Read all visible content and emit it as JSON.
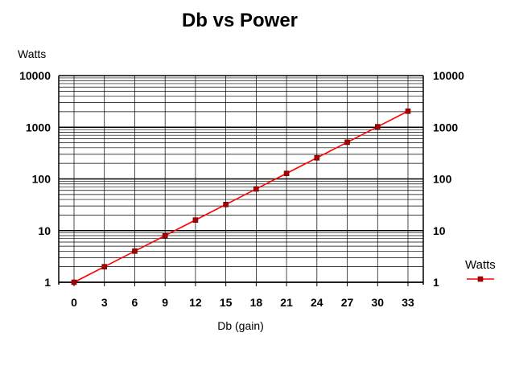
{
  "chart_data": {
    "type": "line",
    "title": "Db vs Power",
    "xlabel": "Db (gain)",
    "ylabel": "Watts",
    "y_scale": "log",
    "ylim": [
      1,
      10000
    ],
    "y_ticks": [
      "1",
      "10",
      "100",
      "1000",
      "10000"
    ],
    "x_ticks": [
      "0",
      "3",
      "6",
      "9",
      "12",
      "15",
      "18",
      "21",
      "24",
      "27",
      "30",
      "33"
    ],
    "grid": true,
    "legend": "right",
    "series": [
      {
        "name": "Watts",
        "color": "#ff0000",
        "marker_color": "#aa0000",
        "x": [
          0,
          3,
          6,
          9,
          12,
          15,
          18,
          21,
          24,
          27,
          30,
          33
        ],
        "y": [
          1,
          2,
          4,
          8,
          16,
          32,
          64,
          128,
          256,
          512,
          1024,
          2048
        ]
      }
    ]
  }
}
